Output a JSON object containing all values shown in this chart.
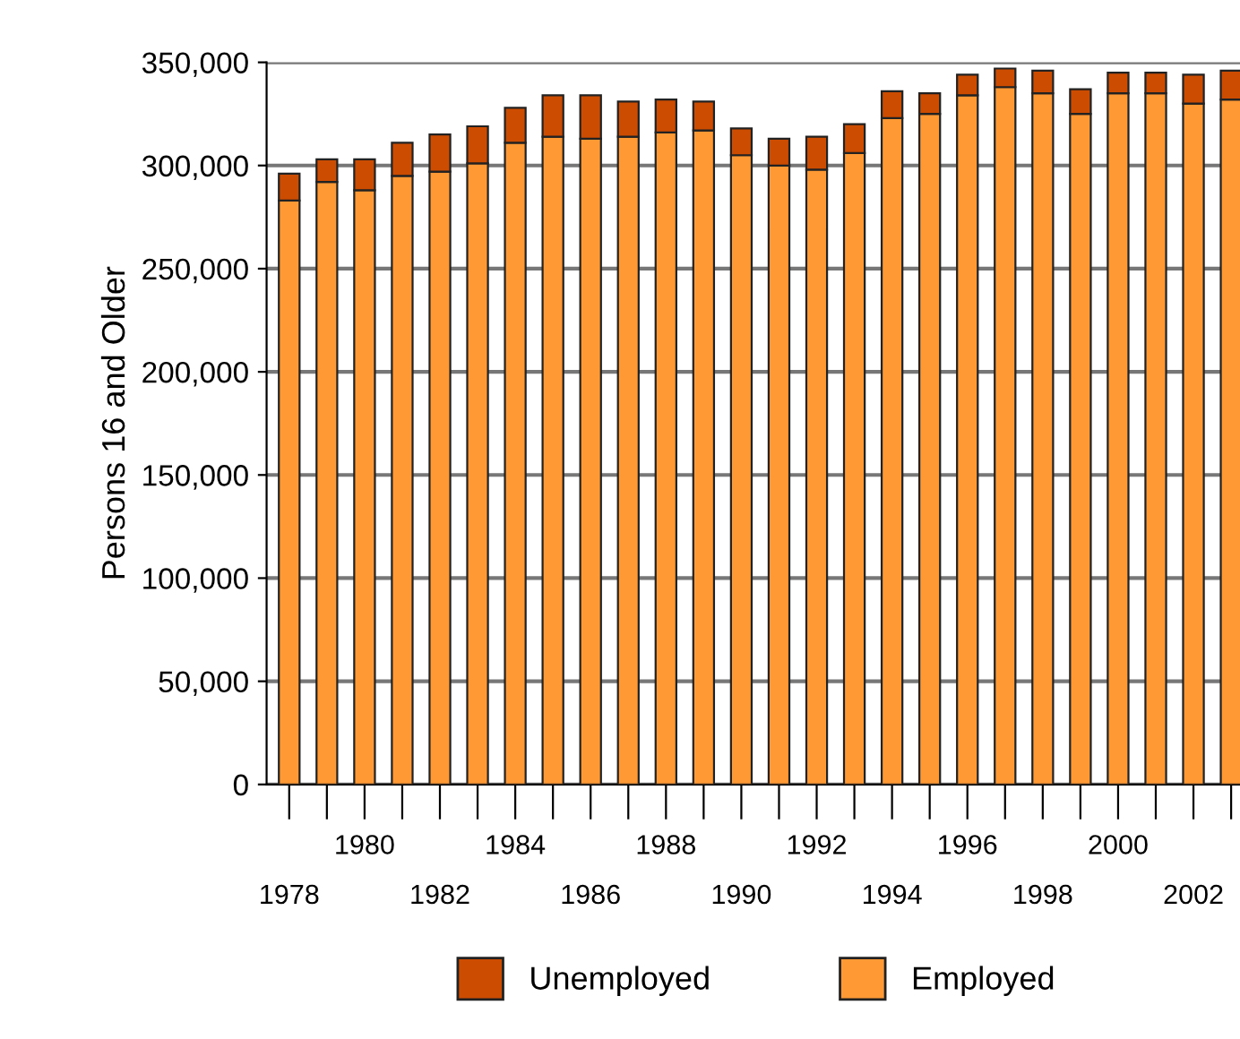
{
  "chart_data": {
    "type": "bar",
    "stacked": true,
    "ylabel": "Persons 16 and Older",
    "categories": [
      "1978",
      null,
      "1980",
      null,
      "1982",
      null,
      "1984",
      null,
      "1986",
      null,
      "1988",
      null,
      "1990",
      null,
      "1992",
      null,
      "1994",
      null,
      "1996",
      null,
      "1998",
      null,
      "2000",
      null,
      "2002",
      null
    ],
    "series": [
      {
        "name": "Employed",
        "color": "#ff9933",
        "values": [
          283000,
          292000,
          288000,
          295000,
          297000,
          301000,
          311000,
          314000,
          313000,
          314000,
          316000,
          317000,
          305000,
          300000,
          298000,
          306000,
          323000,
          325000,
          334000,
          338000,
          335000,
          325000,
          335000,
          335000,
          330000,
          332000
        ]
      },
      {
        "name": "Unemployed",
        "color": "#cc4c02",
        "values": [
          13000,
          11000,
          15000,
          16000,
          18000,
          18000,
          17000,
          20000,
          21000,
          17000,
          16000,
          14000,
          13000,
          13000,
          16000,
          14000,
          13000,
          10000,
          10000,
          9000,
          11000,
          12000,
          10000,
          10000,
          14000,
          14000
        ]
      }
    ],
    "ylim": [
      0,
      350000
    ],
    "yticks": [
      {
        "value": 0,
        "label": "0"
      },
      {
        "value": 50000,
        "label": "50,000"
      },
      {
        "value": 100000,
        "label": "100,000"
      },
      {
        "value": 150000,
        "label": "150,000"
      },
      {
        "value": 200000,
        "label": "200,000"
      },
      {
        "value": 250000,
        "label": "250,000"
      },
      {
        "value": 300000,
        "label": "300,000"
      },
      {
        "value": 350000,
        "label": "350,000"
      }
    ],
    "grid": "y",
    "legend": "bottom"
  }
}
